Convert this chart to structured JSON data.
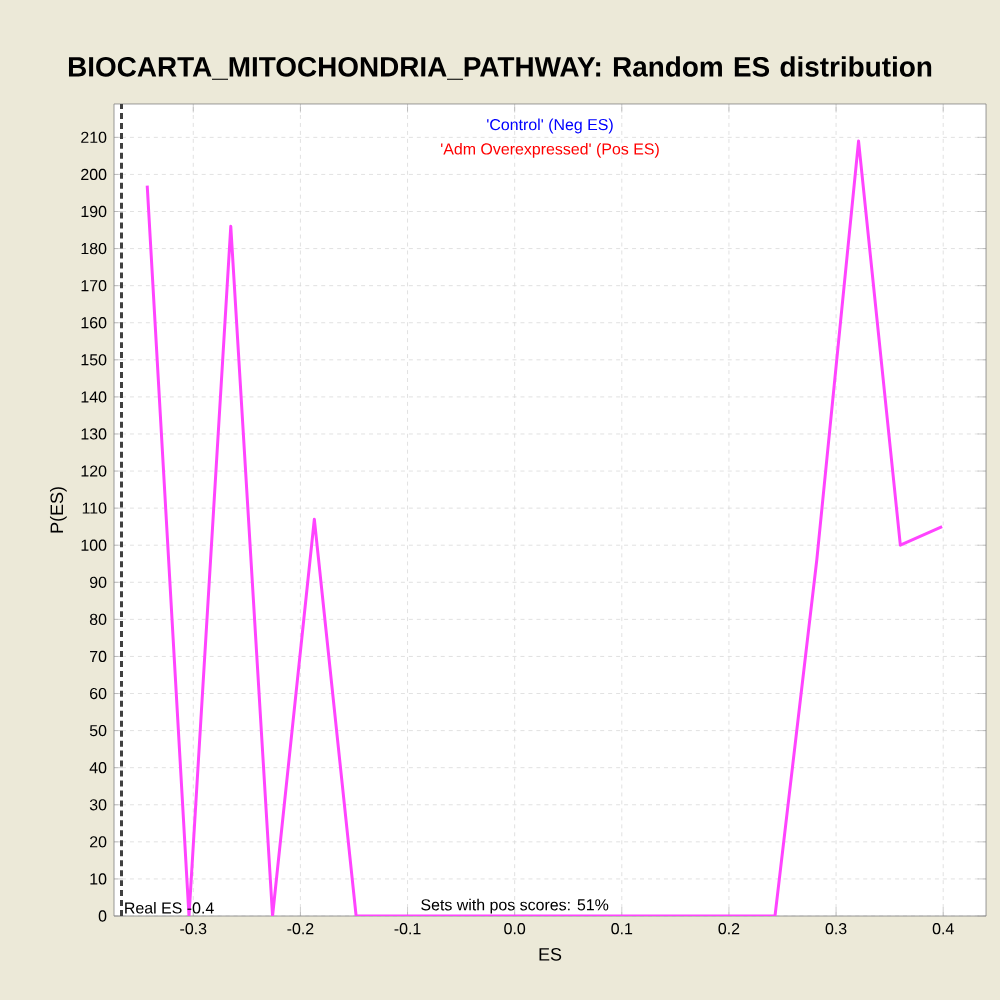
{
  "chart_data": {
    "type": "line",
    "title": "BIOCARTA_MITOCHONDRIA_PATHWAY: Random ES distribution",
    "xlabel": "ES",
    "ylabel": "P(ES)",
    "x": [
      -0.343,
      -0.304,
      -0.265,
      -0.226,
      -0.187,
      -0.148,
      0.243,
      0.282,
      0.321,
      0.36,
      0.399
    ],
    "series": [
      {
        "color": "#ff44ff",
        "values": [
          197,
          0,
          186,
          0,
          107,
          0,
          0,
          96,
          209,
          100,
          105
        ]
      }
    ],
    "xlim": [
      -0.374,
      0.44
    ],
    "ylim": [
      0,
      219
    ],
    "xticks": [
      {
        "value": -0.3,
        "label": "-0.3"
      },
      {
        "value": -0.2,
        "label": "-0.2"
      },
      {
        "value": -0.1,
        "label": "-0.1"
      },
      {
        "value": 0,
        "label": "0.0"
      },
      {
        "value": 0.1,
        "label": "0.1"
      },
      {
        "value": 0.2,
        "label": "0.2"
      },
      {
        "value": 0.3,
        "label": "0.3"
      },
      {
        "value": 0.4,
        "label": "0.4"
      }
    ],
    "yticks": [
      0,
      10,
      20,
      30,
      40,
      50,
      60,
      70,
      80,
      90,
      100,
      110,
      120,
      130,
      140,
      150,
      160,
      170,
      180,
      190,
      200,
      210
    ],
    "grid": true,
    "ref_lines": [
      {
        "axis": "x",
        "value": -0.367,
        "label": "Real ES -0.4",
        "color": "#404040",
        "line_style": "dashed"
      }
    ],
    "annotations": [
      "'Control' (Neg ES)",
      "'Adm Overexpressed' (Pos ES)",
      {
        "text": "Sets with pos scores: 51%",
        "x": 0.0,
        "y": 0
      }
    ]
  }
}
